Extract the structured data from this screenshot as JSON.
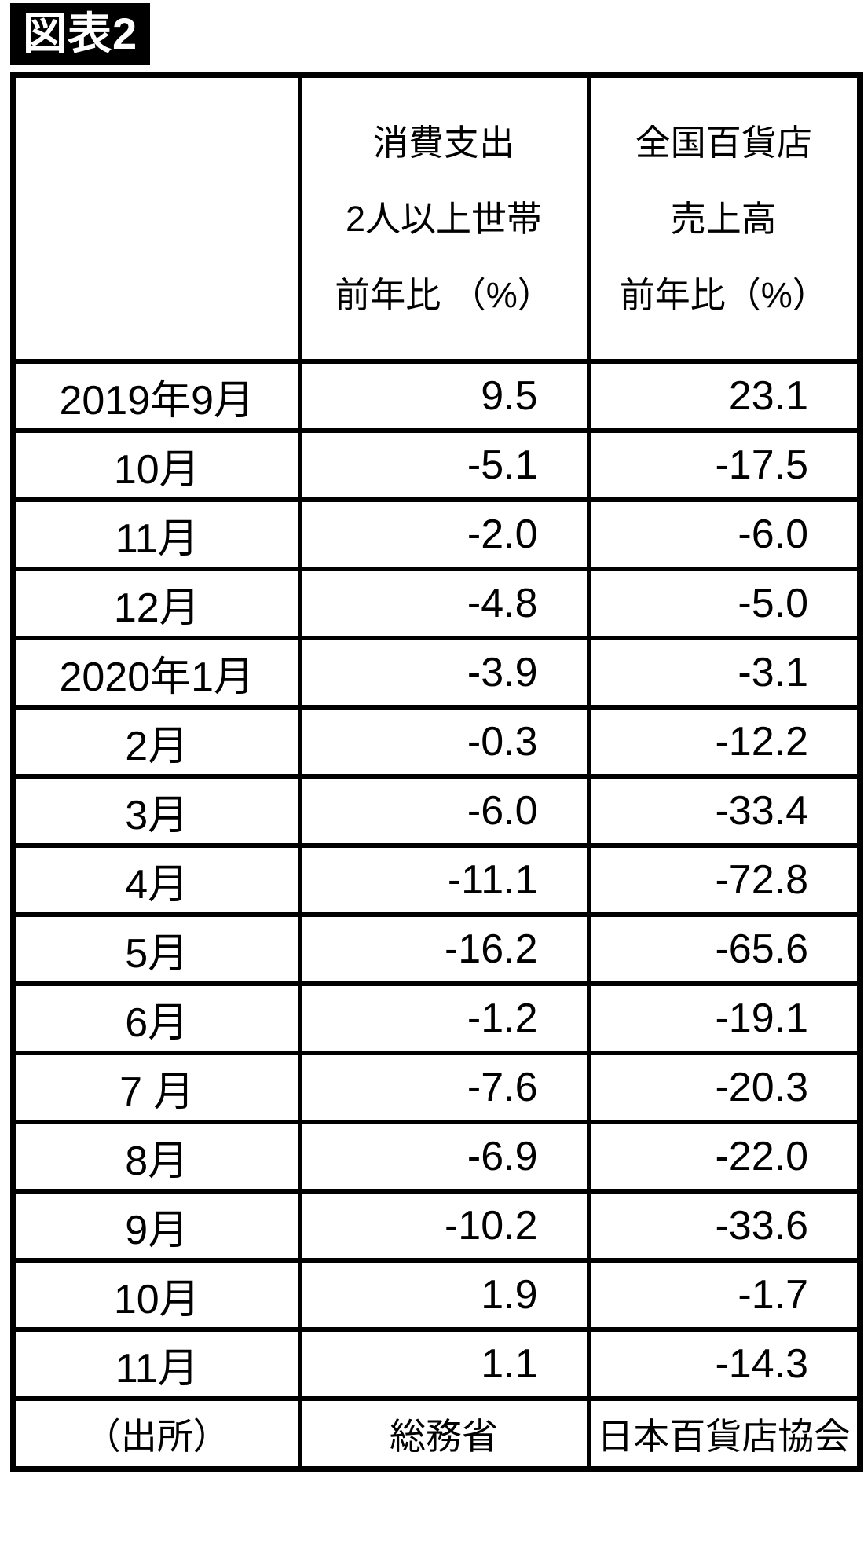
{
  "figure_label": "図表2",
  "colors": {
    "badge_bg": "#000000",
    "badge_text": "#ffffff",
    "border": "#000000",
    "text": "#000000",
    "background": "#ffffff"
  },
  "header": {
    "month_col": "",
    "consumption": {
      "line1": "消費支出",
      "line2": "2人以上世帯",
      "line3": "前年比 （%）"
    },
    "department": {
      "line1": "全国百貨店",
      "line2": "売上高",
      "line3": "前年比（%）"
    }
  },
  "rows": [
    {
      "month": "2019年9月",
      "consumption": "9.5",
      "department": "23.1"
    },
    {
      "month": "10月",
      "consumption": "-5.1",
      "department": "-17.5"
    },
    {
      "month": "11月",
      "consumption": "-2.0",
      "department": "-6.0"
    },
    {
      "month": "12月",
      "consumption": "-4.8",
      "department": "-5.0"
    },
    {
      "month": "2020年1月",
      "consumption": "-3.9",
      "department": "-3.1"
    },
    {
      "month": "2月",
      "consumption": "-0.3",
      "department": "-12.2"
    },
    {
      "month": "3月",
      "consumption": "-6.0",
      "department": "-33.4"
    },
    {
      "month": "4月",
      "consumption": "-11.1",
      "department": "-72.8"
    },
    {
      "month": "5月",
      "consumption": "-16.2",
      "department": "-65.6"
    },
    {
      "month": "6月",
      "consumption": "-1.2",
      "department": "-19.1"
    },
    {
      "month": "7 月",
      "consumption": "-7.6",
      "department": "-20.3"
    },
    {
      "month": "8月",
      "consumption": "-6.9",
      "department": "-22.0"
    },
    {
      "month": "9月",
      "consumption": "-10.2",
      "department": "-33.6"
    },
    {
      "month": "10月",
      "consumption": "1.9",
      "department": "-1.7"
    },
    {
      "month": "11月",
      "consumption": "1.1",
      "department": "-14.3"
    }
  ],
  "source": {
    "label": "（出所）",
    "consumption": "総務省",
    "department": "日本百貨店協会"
  },
  "chart_data": {
    "type": "table",
    "title": "図表2",
    "categories": [
      "2019年9月",
      "10月",
      "11月",
      "12月",
      "2020年1月",
      "2月",
      "3月",
      "4月",
      "5月",
      "6月",
      "7月",
      "8月",
      "9月",
      "10月",
      "11月"
    ],
    "series": [
      {
        "name": "消費支出 2人以上世帯 前年比（%）",
        "values": [
          9.5,
          -5.1,
          -2.0,
          -4.8,
          -3.9,
          -0.3,
          -6.0,
          -11.1,
          -16.2,
          -1.2,
          -7.6,
          -6.9,
          -10.2,
          1.9,
          1.1
        ],
        "source": "総務省"
      },
      {
        "name": "全国百貨店 売上高 前年比（%）",
        "values": [
          23.1,
          -17.5,
          -6.0,
          -5.0,
          -3.1,
          -12.2,
          -33.4,
          -72.8,
          -65.6,
          -19.1,
          -20.3,
          -22.0,
          -33.6,
          -1.7,
          -14.3
        ],
        "source": "日本百貨店協会"
      }
    ]
  }
}
